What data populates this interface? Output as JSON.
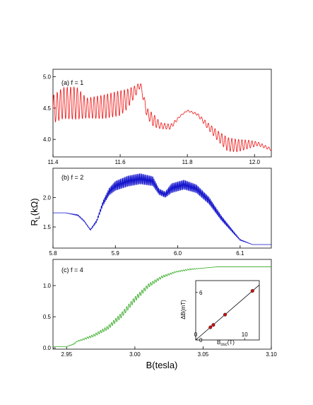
{
  "figure": {
    "shared_ylabel": "R",
    "shared_ylabel_sub": "L",
    "shared_ylabel_unit": "(kΩ)",
    "shared_xlabel": "B(tesla)"
  },
  "chart_data": [
    {
      "type": "line",
      "label": "(a) f = 1",
      "xlim": [
        11.4,
        12.05
      ],
      "ylim": [
        3.72,
        5.12
      ],
      "xticks": [
        "11.4",
        "11.6",
        "11.8",
        "12.0"
      ],
      "xtick_values": [
        11.4,
        11.6,
        11.8,
        12.0
      ],
      "yticks": [
        "4.0",
        "4.5",
        "5.0"
      ],
      "ytick_values": [
        4.0,
        4.5,
        5.0
      ],
      "color": "#ee1111",
      "envelope": {
        "x": [
          11.4,
          11.43,
          11.47,
          11.5,
          11.55,
          11.6,
          11.62,
          11.65,
          11.66,
          11.68,
          11.7,
          11.72,
          11.75,
          11.78,
          11.8,
          11.83,
          11.86,
          11.89,
          11.92,
          11.95,
          11.98,
          12.01,
          12.05
        ],
        "center": [
          4.48,
          4.58,
          4.58,
          4.5,
          4.52,
          4.58,
          4.64,
          4.8,
          4.88,
          4.42,
          4.3,
          4.22,
          4.2,
          4.38,
          4.46,
          4.4,
          4.22,
          4.06,
          3.92,
          3.9,
          3.92,
          3.93,
          3.84
        ],
        "amplitude": [
          0.22,
          0.25,
          0.26,
          0.16,
          0.19,
          0.2,
          0.16,
          0.07,
          0.05,
          0.08,
          0.1,
          0.05,
          0.04,
          0.01,
          0.01,
          0.02,
          0.05,
          0.08,
          0.11,
          0.1,
          0.07,
          0.03,
          0.02
        ]
      },
      "oscillation_period_T": 0.01
    },
    {
      "type": "line",
      "label": "(b) f = 2",
      "xlim": [
        5.8,
        6.15
      ],
      "ylim": [
        1.14,
        2.5
      ],
      "xticks": [
        "5.8",
        "5.9",
        "6.0",
        "6.1"
      ],
      "xtick_values": [
        5.8,
        5.9,
        6.0,
        6.1
      ],
      "yticks": [
        "1.5",
        "2.0"
      ],
      "ytick_values": [
        1.5,
        2.0
      ],
      "color": "#1111cc",
      "envelope": {
        "x": [
          5.8,
          5.82,
          5.84,
          5.85,
          5.86,
          5.87,
          5.88,
          5.89,
          5.9,
          5.92,
          5.94,
          5.96,
          5.97,
          5.98,
          5.99,
          6.01,
          6.03,
          6.05,
          6.07,
          6.09,
          6.1,
          6.12,
          6.15
        ],
        "center": [
          1.74,
          1.74,
          1.7,
          1.6,
          1.45,
          1.6,
          1.9,
          2.1,
          2.2,
          2.28,
          2.32,
          2.28,
          2.1,
          2.05,
          2.16,
          2.22,
          2.15,
          1.95,
          1.65,
          1.4,
          1.28,
          1.2,
          1.2
        ],
        "amplitude": [
          0.0,
          0.0,
          0.01,
          0.01,
          0.01,
          0.02,
          0.04,
          0.06,
          0.08,
          0.09,
          0.09,
          0.08,
          0.05,
          0.05,
          0.08,
          0.08,
          0.07,
          0.06,
          0.04,
          0.02,
          0.01,
          0.0,
          0.0
        ]
      },
      "oscillation_period_T": 0.0018
    },
    {
      "type": "line",
      "label": "(c) f = 4",
      "xlim": [
        2.94,
        3.1
      ],
      "ylim": [
        -0.02,
        1.42
      ],
      "xticks": [
        "2.95",
        "3.00",
        "3.05",
        "3.10"
      ],
      "xtick_values": [
        2.95,
        3.0,
        3.05,
        3.1
      ],
      "yticks": [
        "0.0",
        "0.5",
        "1.0"
      ],
      "ytick_values": [
        0.0,
        0.5,
        1.0
      ],
      "color": "#33aa22",
      "envelope": {
        "x": [
          2.94,
          2.95,
          2.955,
          2.958,
          2.96,
          2.97,
          2.98,
          2.99,
          3.0,
          3.01,
          3.02,
          3.03,
          3.04,
          3.05,
          3.06,
          3.08,
          3.1
        ],
        "center": [
          0.02,
          0.02,
          0.06,
          0.11,
          0.12,
          0.2,
          0.32,
          0.52,
          0.78,
          1.0,
          1.14,
          1.22,
          1.26,
          1.28,
          1.3,
          1.3,
          1.3
        ],
        "amplitude": [
          0.0,
          0.0,
          0.01,
          0.01,
          0.01,
          0.02,
          0.03,
          0.04,
          0.04,
          0.03,
          0.02,
          0.01,
          0.01,
          0.0,
          0.0,
          0.0,
          0.0
        ]
      },
      "oscillation_period_T": 0.0016
    },
    {
      "type": "scatter",
      "role": "inset",
      "xlabel": "B",
      "xlabel_sub": "osc",
      "xlabel_unit": "(T)",
      "ylabel": "ΔB(mT)",
      "xlim": [
        0,
        13
      ],
      "ylim": [
        0,
        7.5
      ],
      "xticks": [
        "0",
        "10"
      ],
      "xtick_values": [
        0,
        10
      ],
      "yticks": [
        "0",
        "6"
      ],
      "ytick_values": [
        0,
        6
      ],
      "points": {
        "x": [
          3.0,
          3.6,
          6.0,
          11.6
        ],
        "y": [
          1.6,
          1.9,
          3.2,
          6.2
        ]
      },
      "fit_line": {
        "x": [
          0,
          13
        ],
        "y": [
          0,
          6.95
        ]
      },
      "point_color": "#cc1111"
    }
  ]
}
